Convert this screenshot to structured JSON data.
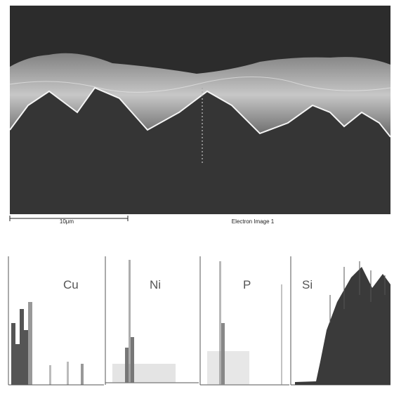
{
  "image": {
    "scale_bar": "10μm",
    "caption": "Electron Image 1"
  },
  "panels": [
    {
      "label": "Cu"
    },
    {
      "label": "Ni"
    },
    {
      "label": "P"
    },
    {
      "label": "Si"
    }
  ]
}
